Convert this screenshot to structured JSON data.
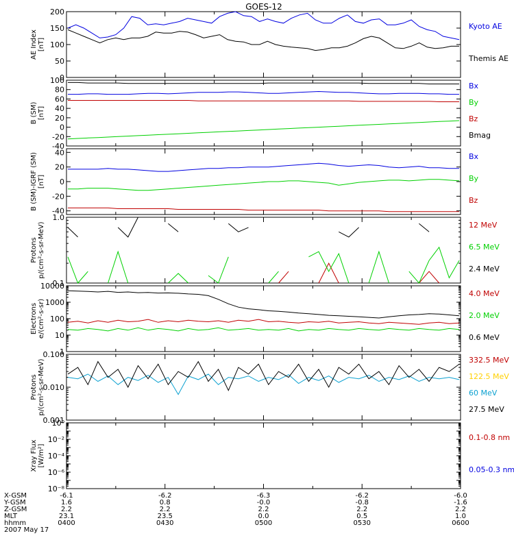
{
  "title": "GOES-12",
  "colors": {
    "black": "#000000",
    "blue": "#0000e0",
    "red": "#c00000",
    "green": "#00d000",
    "yellow": "#ffd000",
    "cyan": "#0aa0d0"
  },
  "chart_data": [
    {
      "type": "line",
      "panel": "ae",
      "ylabel": [
        "AE Index",
        "[nT]"
      ],
      "ylim": [
        0,
        200
      ],
      "scale": "linear",
      "yticks": [
        0,
        50,
        100,
        150,
        200
      ],
      "series": [
        {
          "name": "Kyoto AE",
          "color": "blue",
          "values": [
            150,
            160,
            150,
            135,
            120,
            123,
            130,
            150,
            185,
            180,
            160,
            163,
            160,
            165,
            170,
            180,
            175,
            170,
            165,
            185,
            195,
            200,
            188,
            185,
            170,
            178,
            170,
            165,
            180,
            190,
            195,
            175,
            165,
            165,
            180,
            190,
            170,
            165,
            175,
            178,
            160,
            160,
            165,
            175,
            155,
            145,
            140,
            125,
            120,
            115
          ]
        },
        {
          "name": "Themis AE",
          "color": "black",
          "values": [
            145,
            135,
            125,
            115,
            105,
            115,
            120,
            115,
            120,
            120,
            125,
            138,
            135,
            135,
            140,
            138,
            130,
            120,
            125,
            130,
            115,
            110,
            108,
            100,
            100,
            110,
            100,
            95,
            92,
            90,
            88,
            82,
            85,
            90,
            90,
            95,
            105,
            118,
            125,
            120,
            105,
            90,
            88,
            95,
            105,
            92,
            88,
            90,
            95,
            95
          ]
        }
      ]
    },
    {
      "type": "line",
      "panel": "bsm",
      "ylabel": [
        "B (SM)",
        "[nT]"
      ],
      "ylim": [
        -40,
        100
      ],
      "scale": "linear",
      "yticks": [
        -40,
        -20,
        0,
        20,
        40,
        60,
        80,
        100
      ],
      "series": [
        {
          "name": "Bx",
          "color": "blue",
          "values": [
            70,
            70,
            71,
            71,
            70,
            70,
            70,
            71,
            72,
            72,
            71,
            72,
            73,
            74,
            74,
            74,
            75,
            75,
            74,
            73,
            72,
            72,
            73,
            74,
            75,
            76,
            75,
            74,
            74,
            73,
            72,
            71,
            71,
            72,
            72,
            72,
            71,
            71,
            70,
            70
          ]
        },
        {
          "name": "By",
          "color": "green",
          "values": [
            -25,
            -24,
            -23,
            -22,
            -21,
            -20,
            -19,
            -18,
            -17,
            -16,
            -15,
            -14,
            -13,
            -12,
            -11,
            -10,
            -9,
            -8,
            -7,
            -6,
            -5,
            -4,
            -3,
            -2,
            -1,
            0,
            1,
            2,
            3,
            4,
            5,
            6,
            7,
            8,
            9,
            10,
            11,
            12,
            13,
            14
          ]
        },
        {
          "name": "Bz",
          "color": "red",
          "values": [
            57,
            57,
            57,
            57,
            57,
            57,
            57,
            57,
            57,
            57,
            57,
            57,
            57,
            56,
            56,
            56,
            56,
            56,
            56,
            56,
            56,
            56,
            56,
            56,
            56,
            56,
            56,
            56,
            56,
            55,
            55,
            55,
            55,
            55,
            55,
            55,
            55,
            54,
            54,
            54
          ]
        },
        {
          "name": "Bmag",
          "color": "black",
          "values": [
            95,
            95,
            94,
            94,
            94,
            94,
            93,
            93,
            93,
            93,
            93,
            93,
            93,
            93,
            93,
            93,
            93,
            93,
            93,
            93,
            94,
            94,
            94,
            94,
            94,
            94,
            94,
            94,
            94,
            94,
            93,
            93,
            93,
            93,
            93,
            93,
            92,
            92,
            92,
            92
          ]
        }
      ]
    },
    {
      "type": "line",
      "panel": "bsmigrf",
      "ylabel": [
        "B (SM)-IGRF (SM)",
        "[nT]"
      ],
      "ylim": [
        -45,
        45
      ],
      "scale": "linear",
      "yticks": [
        -40,
        -20,
        0,
        20,
        40
      ],
      "series": [
        {
          "name": "Bx",
          "color": "blue",
          "values": [
            17,
            17,
            17,
            17,
            18,
            17,
            17,
            16,
            15,
            14,
            14,
            15,
            16,
            17,
            18,
            18,
            19,
            19,
            20,
            20,
            20,
            21,
            22,
            23,
            24,
            25,
            24,
            22,
            21,
            22,
            23,
            22,
            20,
            19,
            20,
            21,
            19,
            19,
            18,
            18
          ]
        },
        {
          "name": "By",
          "color": "green",
          "values": [
            -10,
            -10,
            -9,
            -9,
            -9,
            -10,
            -11,
            -12,
            -12,
            -11,
            -10,
            -9,
            -8,
            -7,
            -6,
            -5,
            -4,
            -3,
            -2,
            -1,
            0,
            0,
            1,
            1,
            0,
            -1,
            -2,
            -5,
            -3,
            -1,
            0,
            1,
            2,
            2,
            1,
            2,
            3,
            3,
            2,
            1
          ]
        },
        {
          "name": "Bz",
          "color": "red",
          "values": [
            -36,
            -36,
            -36,
            -36,
            -36,
            -37,
            -37,
            -37,
            -37,
            -37,
            -37,
            -38,
            -38,
            -38,
            -38,
            -38,
            -38,
            -38,
            -39,
            -39,
            -39,
            -39,
            -39,
            -39,
            -39,
            -39,
            -40,
            -40,
            -40,
            -40,
            -40,
            -40,
            -41,
            -41,
            -41,
            -41,
            -41,
            -41,
            -41,
            -41
          ]
        }
      ]
    },
    {
      "type": "line",
      "panel": "protons_low",
      "ylabel": [
        "Protons",
        "p/(cm²-s-sr-MeV)"
      ],
      "ylim": [
        0.1,
        1.0
      ],
      "scale": "log",
      "yticks": [
        0.1,
        1.0
      ],
      "yticklabels": [
        "0.1",
        "1.0"
      ],
      "series": [
        {
          "name": "12 MeV",
          "color": "red",
          "values": [
            null,
            null,
            null,
            null,
            null,
            null,
            null,
            null,
            0.2,
            null,
            null,
            null,
            null,
            null,
            null,
            null,
            null,
            null,
            null,
            null,
            null,
            0.08,
            0.15,
            null,
            null,
            0.09,
            0.2,
            0.08,
            null,
            null,
            null,
            null,
            null,
            null,
            null,
            0.09,
            0.15,
            0.06,
            null,
            null
          ]
        },
        {
          "name": "6.5 MeV",
          "color": "green",
          "values": [
            0.25,
            0.08,
            0.15,
            null,
            0.09,
            0.3,
            0.08,
            null,
            null,
            null,
            0.09,
            0.14,
            0.08,
            null,
            0.13,
            0.09,
            0.25,
            null,
            0.3,
            null,
            0.09,
            0.15,
            null,
            null,
            0.25,
            0.3,
            0.15,
            0.28,
            0.09,
            null,
            0.09,
            0.3,
            0.09,
            null,
            0.15,
            0.08,
            0.22,
            0.35,
            0.12,
            0.22
          ]
        },
        {
          "name": "2.4 MeV",
          "color": "black",
          "values": [
            0.7,
            0.5,
            null,
            0.5,
            null,
            0.7,
            0.5,
            1.0,
            null,
            null,
            0.8,
            0.6,
            null,
            null,
            null,
            null,
            0.8,
            0.6,
            0.7,
            null,
            null,
            null,
            null,
            null,
            null,
            null,
            null,
            0.6,
            0.5,
            0.7,
            null,
            0.5,
            null,
            null,
            null,
            0.8,
            0.6,
            null,
            null,
            null
          ]
        }
      ]
    },
    {
      "type": "line",
      "panel": "electrons",
      "ylabel": [
        "Electrons",
        "e/(cm²-s-sr)"
      ],
      "ylim": [
        1,
        10000
      ],
      "scale": "log",
      "yticks": [
        1,
        10,
        100,
        1000,
        10000
      ],
      "yticklabels": [
        "1",
        "10",
        "100",
        "1000",
        "10000"
      ],
      "series": [
        {
          "name": "4.0 MeV",
          "color": "red",
          "values": [
            60,
            70,
            55,
            75,
            60,
            80,
            65,
            70,
            90,
            60,
            75,
            65,
            80,
            70,
            65,
            75,
            60,
            80,
            70,
            90,
            65,
            70,
            60,
            55,
            65,
            60,
            70,
            55,
            60,
            65,
            55,
            50,
            60,
            55,
            50,
            45,
            55,
            60,
            50,
            55
          ]
        },
        {
          "name": "2.0 MeV",
          "color": "green",
          "values": [
            22,
            20,
            25,
            22,
            18,
            25,
            20,
            28,
            20,
            25,
            22,
            18,
            25,
            20,
            22,
            28,
            20,
            22,
            25,
            20,
            22,
            20,
            25,
            18,
            22,
            20,
            25,
            22,
            20,
            25,
            22,
            20,
            25,
            22,
            20,
            25,
            22,
            20,
            25,
            22
          ]
        },
        {
          "name": "0.6 MeV",
          "color": "black",
          "values": [
            5000,
            4800,
            4500,
            4200,
            4600,
            4000,
            4200,
            3800,
            3900,
            3600,
            3700,
            3500,
            3200,
            3000,
            2500,
            1500,
            800,
            500,
            400,
            350,
            300,
            280,
            250,
            220,
            200,
            180,
            160,
            150,
            140,
            130,
            120,
            110,
            130,
            150,
            170,
            180,
            200,
            190,
            170,
            150
          ]
        }
      ]
    },
    {
      "type": "line",
      "panel": "protons_high",
      "ylabel": [
        "Protons",
        "p/(cm²-s-sr-MeV)"
      ],
      "ylim": [
        0.001,
        0.1
      ],
      "scale": "log",
      "yticks": [
        0.001,
        0.01,
        0.1
      ],
      "yticklabels": [
        "0.001",
        "0.010",
        "0.100"
      ],
      "series": [
        {
          "name": "332.5 MeV",
          "color": "red",
          "values": []
        },
        {
          "name": "122.5 MeV",
          "color": "yellow",
          "values": []
        },
        {
          "name": "60 MeV",
          "color": "cyan",
          "values": [
            0.02,
            0.018,
            0.025,
            0.015,
            0.022,
            0.012,
            0.02,
            0.016,
            0.023,
            0.014,
            0.02,
            0.006,
            0.022,
            0.017,
            0.025,
            0.012,
            0.02,
            0.018,
            0.022,
            0.015,
            0.02,
            0.017,
            0.024,
            0.013,
            0.02,
            0.016,
            0.022,
            0.014,
            0.02,
            0.018,
            0.023,
            0.015,
            0.02,
            0.017,
            0.022,
            0.015,
            0.02,
            0.018,
            0.02,
            0.017
          ]
        },
        {
          "name": "27.5 MeV",
          "color": "black",
          "values": [
            0.025,
            0.04,
            0.012,
            0.06,
            0.02,
            0.035,
            0.01,
            0.045,
            0.018,
            0.05,
            0.012,
            0.03,
            0.02,
            0.06,
            0.015,
            0.035,
            0.008,
            0.04,
            0.025,
            0.05,
            0.012,
            0.03,
            0.02,
            0.05,
            0.015,
            0.035,
            0.01,
            0.04,
            0.025,
            0.05,
            0.018,
            0.03,
            0.012,
            0.045,
            0.02,
            0.035,
            0.015,
            0.04,
            0.03,
            0.05
          ]
        }
      ]
    },
    {
      "type": "line",
      "panel": "xray",
      "ylabel": [
        "Xray Flux",
        "[W/m²]"
      ],
      "ylim": [
        1e-08,
        1
      ],
      "scale": "log",
      "yticks": [
        1e-08,
        1e-07,
        1e-06,
        1e-05,
        0.0001,
        0.001,
        0.01,
        0.1,
        1
      ],
      "yticklabels": [
        "10⁻⁸",
        "",
        "10⁻⁶",
        "",
        "10⁻⁴",
        "",
        "10⁻²",
        "",
        "10⁰"
      ],
      "series": [
        {
          "name": "0.1-0.8 nm",
          "color": "red",
          "values": []
        },
        {
          "name": "0.05-0.3 nm",
          "color": "blue",
          "values": []
        }
      ]
    }
  ],
  "xaxis": {
    "rows": [
      {
        "label": "X-GSM",
        "values": [
          "-6.1",
          "-6.2",
          "-6.3",
          "-6.2",
          "-6.0"
        ]
      },
      {
        "label": "Y-GSM",
        "values": [
          "1.6",
          "0.8",
          "-0.0",
          "-0.8",
          "-1.6"
        ]
      },
      {
        "label": "Z-GSM",
        "values": [
          "2.2",
          "2.2",
          "2.2",
          "2.2",
          "2.2"
        ]
      },
      {
        "label": "MLT",
        "values": [
          "23.1",
          "23.5",
          "0.0",
          "0.5",
          "1.0"
        ]
      },
      {
        "label": "hhmm",
        "values": [
          "0400",
          "0430",
          "0500",
          "0530",
          "0600"
        ]
      }
    ],
    "date": "2007 May 17"
  }
}
